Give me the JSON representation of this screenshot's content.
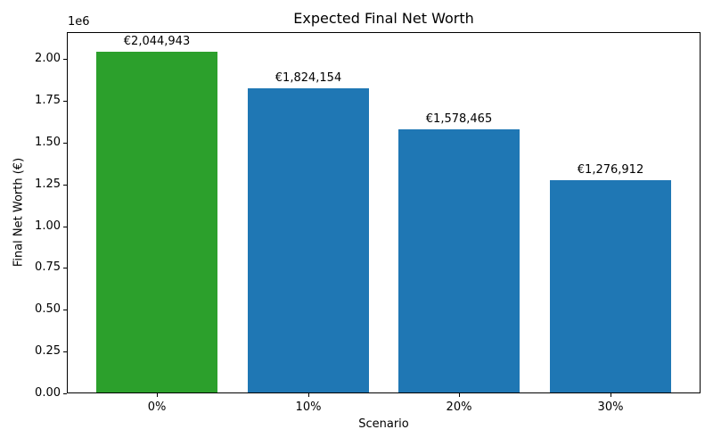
{
  "chart_data": {
    "type": "bar",
    "title": "Expected Final Net Worth",
    "xlabel": "Scenario",
    "ylabel": "Final Net Worth (€)",
    "categories": [
      "0%",
      "10%",
      "20%",
      "30%"
    ],
    "values": [
      2044943,
      1824154,
      1578465,
      1276912
    ],
    "bar_labels": [
      "€2,044,943",
      "€1,824,154",
      "€1,578,465",
      "€1,276,912"
    ],
    "bar_colors": [
      "#2ca02c",
      "#1f77b4",
      "#1f77b4",
      "#1f77b4"
    ],
    "default_bar_color": "#1f77b4",
    "highlight_bar_color": "#2ca02c",
    "ylim": [
      0,
      2160000
    ],
    "yticks": [
      0,
      250000,
      500000,
      750000,
      1000000,
      1250000,
      1500000,
      1750000,
      2000000
    ],
    "ytick_labels": [
      "0.00",
      "0.25",
      "0.50",
      "0.75",
      "1.00",
      "1.25",
      "1.50",
      "1.75",
      "2.00"
    ],
    "y_offset_text": "1e6",
    "grid": false,
    "legend": "none",
    "background": "#ffffff"
  }
}
